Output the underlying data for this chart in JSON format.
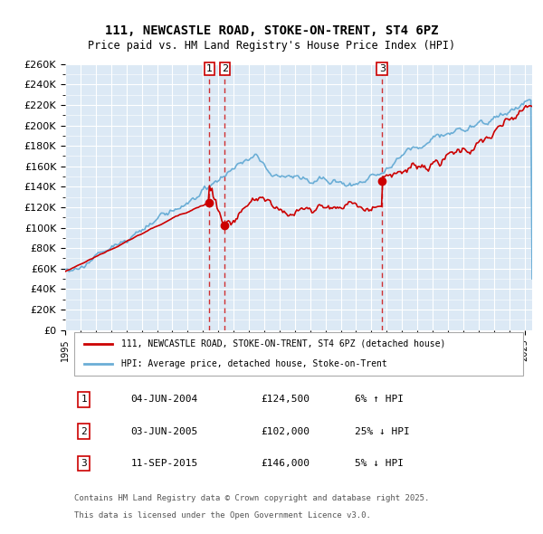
{
  "title": "111, NEWCASTLE ROAD, STOKE-ON-TRENT, ST4 6PZ",
  "subtitle": "Price paid vs. HM Land Registry's House Price Index (HPI)",
  "legend_line1": "111, NEWCASTLE ROAD, STOKE-ON-TRENT, ST4 6PZ (detached house)",
  "legend_line2": "HPI: Average price, detached house, Stoke-on-Trent",
  "footer_line1": "Contains HM Land Registry data © Crown copyright and database right 2025.",
  "footer_line2": "This data is licensed under the Open Government Licence v3.0.",
  "transactions": [
    {
      "label": "1",
      "date": "04-JUN-2004",
      "price": 124500,
      "pct": "6%",
      "dir": "↑",
      "x_year": 2004.42
    },
    {
      "label": "2",
      "date": "03-JUN-2005",
      "price": 102000,
      "pct": "25%",
      "dir": "↓",
      "x_year": 2005.42
    },
    {
      "label": "3",
      "date": "11-SEP-2015",
      "price": 146000,
      "pct": "5%",
      "dir": "↓",
      "x_year": 2015.7
    }
  ],
  "hpi_color": "#6baed6",
  "price_color": "#cc0000",
  "background_color": "#dce9f5",
  "plot_bg": "#dce9f5",
  "grid_color": "#ffffff",
  "ylim": [
    0,
    260000
  ],
  "xlim_start": 1995.0,
  "xlim_end": 2025.5,
  "ytick_step": 20000
}
